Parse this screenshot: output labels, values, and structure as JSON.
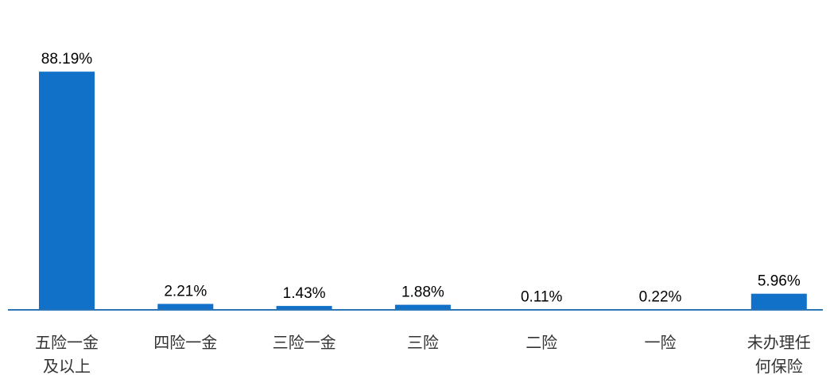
{
  "chart_data": {
    "type": "bar",
    "categories": [
      [
        "五险一金",
        "及以上"
      ],
      [
        "四险一金"
      ],
      [
        "三险一金"
      ],
      [
        "三险"
      ],
      [
        "二险"
      ],
      [
        "一险"
      ],
      [
        "未办理任",
        "何保险"
      ]
    ],
    "values": [
      88.19,
      2.21,
      1.43,
      1.88,
      0.11,
      0.22,
      5.96
    ],
    "data_labels": [
      "88.19%",
      "2.21%",
      "1.43%",
      "1.88%",
      "0.11%",
      "0.22%",
      "5.96%"
    ],
    "ylim": [
      0,
      100
    ],
    "grid": false,
    "legend": "none",
    "colors": {
      "bar": "#1170C8",
      "axis": "#2E75B6"
    }
  }
}
